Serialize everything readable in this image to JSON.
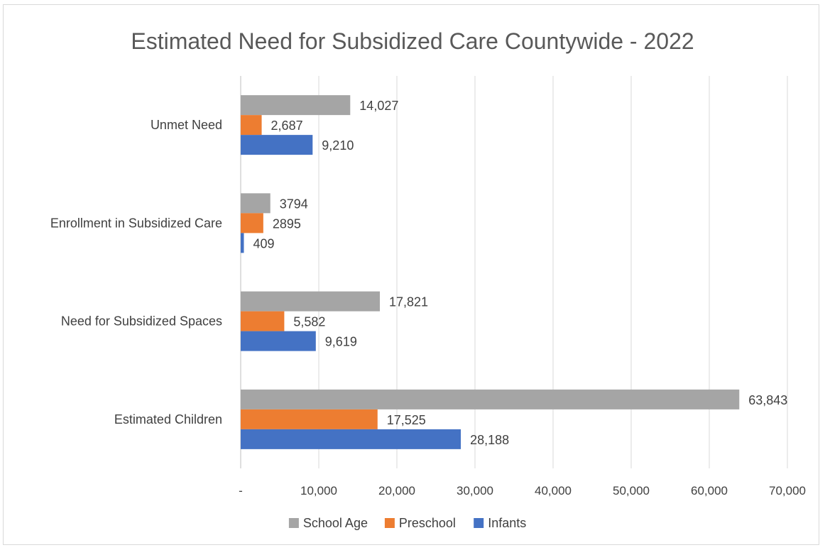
{
  "chart_data": {
    "type": "bar",
    "orientation": "horizontal",
    "title": "Estimated Need for Subsidized Care Countywide - 2022",
    "categories": [
      "Unmet Need",
      "Enrollment in Subsidized Care",
      "Need for Subsidized Spaces",
      "Estimated Children"
    ],
    "series": [
      {
        "name": "School Age",
        "color": "#a5a5a5",
        "values": [
          14027,
          3794,
          17821,
          63843
        ],
        "labels": [
          "14,027",
          "3794",
          "17,821",
          "63,843"
        ]
      },
      {
        "name": "Preschool",
        "color": "#ed7d31",
        "values": [
          2687,
          2895,
          5582,
          17525
        ],
        "labels": [
          "2,687",
          "2895",
          "5,582",
          "17,525"
        ]
      },
      {
        "name": "Infants",
        "color": "#4472c4",
        "values": [
          9210,
          409,
          9619,
          28188
        ],
        "labels": [
          "9,210",
          "409",
          "9,619",
          "28,188"
        ]
      }
    ],
    "xlim": [
      0,
      70000
    ],
    "xticks": [
      0,
      10000,
      20000,
      30000,
      40000,
      50000,
      60000,
      70000
    ],
    "xtick_labels": [
      "-",
      "10,000",
      "20,000",
      "30,000",
      "40,000",
      "50,000",
      "60,000",
      "70,000"
    ],
    "grid": true,
    "legend_position": "bottom"
  }
}
